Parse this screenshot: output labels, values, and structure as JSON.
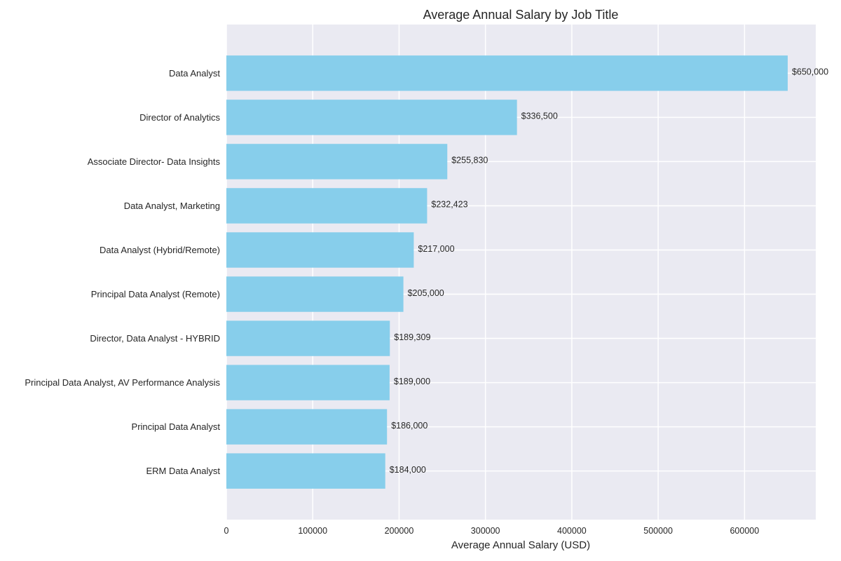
{
  "chart_data": {
    "type": "bar",
    "orientation": "horizontal",
    "title": "Average Annual Salary by Job Title",
    "xlabel": "Average Annual Salary (USD)",
    "ylabel": "",
    "xlim": [
      0,
      682500
    ],
    "xticks": [
      0,
      100000,
      200000,
      300000,
      400000,
      500000,
      600000
    ],
    "xtick_labels": [
      "0",
      "100000",
      "200000",
      "300000",
      "400000",
      "500000",
      "600000"
    ],
    "grid": true,
    "bar_color": "#87CEEB",
    "background_color": "#EAEAF2",
    "categories": [
      "Data Analyst",
      "Director of Analytics",
      "Associate Director- Data Insights",
      "Data Analyst, Marketing",
      "Data Analyst (Hybrid/Remote)",
      "Principal Data Analyst (Remote)",
      "Director, Data Analyst - HYBRID",
      "Principal Data Analyst, AV Performance Analysis",
      "Principal Data Analyst",
      "ERM Data Analyst"
    ],
    "values": [
      650000,
      336500,
      255830,
      232423,
      217000,
      205000,
      189309,
      189000,
      186000,
      184000
    ],
    "data_labels": [
      "$650,000",
      "$336,500",
      "$255,830",
      "$232,423",
      "$217,000",
      "$205,000",
      "$189,309",
      "$189,000",
      "$186,000",
      "$184,000"
    ]
  }
}
